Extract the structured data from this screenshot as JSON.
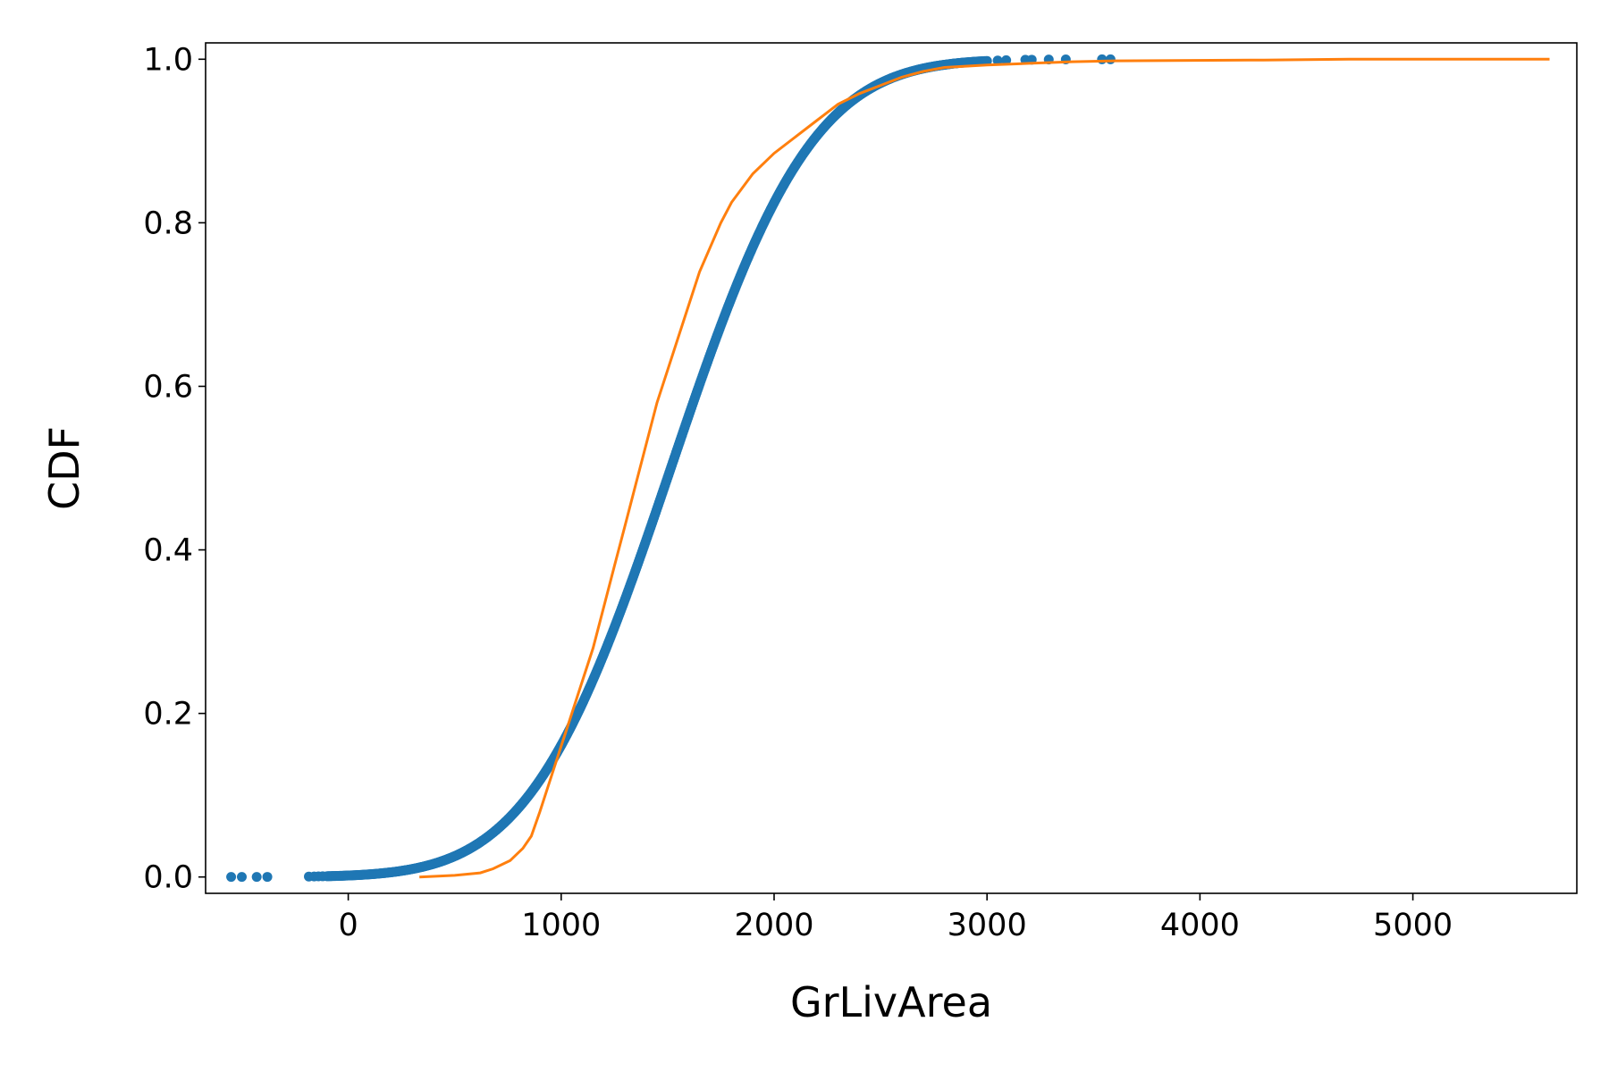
{
  "chart_data": {
    "type": "scatter",
    "title": "",
    "xlabel": "GrLivArea",
    "ylabel": "CDF",
    "xlim": [
      -670,
      5770
    ],
    "ylim": [
      -0.02,
      1.02
    ],
    "xticks": [
      0,
      1000,
      2000,
      3000,
      4000,
      5000
    ],
    "yticks": [
      0.0,
      0.2,
      0.4,
      0.6,
      0.8,
      1.0
    ],
    "xtick_labels": [
      "0",
      "1000",
      "2000",
      "3000",
      "4000",
      "5000"
    ],
    "ytick_labels": [
      "0.0",
      "0.2",
      "0.4",
      "0.6",
      "0.8",
      "1.0"
    ],
    "grid": false,
    "legend": "none",
    "series": [
      {
        "kind": "scatter",
        "color": "#1f77b4",
        "distribution": "normal-cdf",
        "mean": 1515,
        "std": 520,
        "x_range": [
          -550,
          3580
        ],
        "outliers_x": [
          -550,
          -500,
          -430,
          -380,
          -185,
          -160,
          -140,
          -120,
          3050,
          3090,
          3180,
          3210,
          3290,
          3370,
          3540,
          3580
        ]
      },
      {
        "kind": "line",
        "color": "#ff7f0e",
        "points": [
          [
            334,
            0.0
          ],
          [
            500,
            0.002
          ],
          [
            620,
            0.005
          ],
          [
            680,
            0.01
          ],
          [
            760,
            0.02
          ],
          [
            820,
            0.035
          ],
          [
            860,
            0.05
          ],
          [
            900,
            0.08
          ],
          [
            950,
            0.12
          ],
          [
            1000,
            0.16
          ],
          [
            1050,
            0.2
          ],
          [
            1100,
            0.24
          ],
          [
            1150,
            0.28
          ],
          [
            1200,
            0.33
          ],
          [
            1250,
            0.38
          ],
          [
            1300,
            0.43
          ],
          [
            1350,
            0.48
          ],
          [
            1400,
            0.53
          ],
          [
            1450,
            0.58
          ],
          [
            1500,
            0.62
          ],
          [
            1550,
            0.66
          ],
          [
            1600,
            0.7
          ],
          [
            1650,
            0.74
          ],
          [
            1700,
            0.77
          ],
          [
            1750,
            0.8
          ],
          [
            1800,
            0.825
          ],
          [
            1900,
            0.86
          ],
          [
            2000,
            0.885
          ],
          [
            2100,
            0.905
          ],
          [
            2200,
            0.925
          ],
          [
            2300,
            0.945
          ],
          [
            2400,
            0.958
          ],
          [
            2500,
            0.968
          ],
          [
            2600,
            0.978
          ],
          [
            2700,
            0.985
          ],
          [
            2800,
            0.99
          ],
          [
            3000,
            0.993
          ],
          [
            3200,
            0.995
          ],
          [
            3400,
            0.997
          ],
          [
            3600,
            0.998
          ],
          [
            4300,
            0.999
          ],
          [
            4700,
            1.0
          ],
          [
            5642,
            1.0
          ]
        ]
      }
    ]
  }
}
